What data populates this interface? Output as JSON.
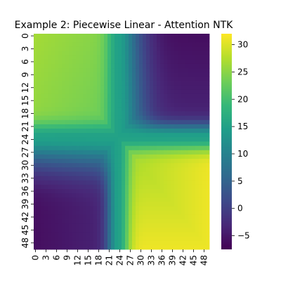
{
  "chart_data": {
    "type": "heatmap",
    "title": "Example 2: Piecewise Linear - Attention NTK",
    "xlabel": "",
    "ylabel": "",
    "n": 50,
    "x_tick_labels": [
      "0",
      "3",
      "6",
      "9",
      "12",
      "15",
      "18",
      "21",
      "24",
      "27",
      "30",
      "33",
      "36",
      "39",
      "42",
      "45",
      "48"
    ],
    "y_tick_labels": [
      "0",
      "3",
      "6",
      "9",
      "12",
      "15",
      "18",
      "21",
      "24",
      "27",
      "30",
      "33",
      "36",
      "39",
      "42",
      "45",
      "48"
    ],
    "colorbar": {
      "min": -7.5,
      "max": 32,
      "ticks": [
        "30",
        "25",
        "20",
        "15",
        "10",
        "5",
        "0",
        "−5"
      ],
      "tick_values": [
        30,
        25,
        20,
        15,
        10,
        5,
        0,
        -5
      ],
      "colormap": "viridis"
    },
    "value_model": {
      "description_of_regions": "",
      "top_left_value": 26.5,
      "top_right_value": -6,
      "bottom_left_value": -6,
      "bottom_right_value": 31,
      "cross_center_value": 15
    },
    "colors": {
      "viridis_stops": [
        "#440154",
        "#482878",
        "#3e4989",
        "#31688e",
        "#26828e",
        "#1f9e89",
        "#35b779",
        "#6ece58",
        "#b5de2b",
        "#fde725"
      ]
    }
  }
}
